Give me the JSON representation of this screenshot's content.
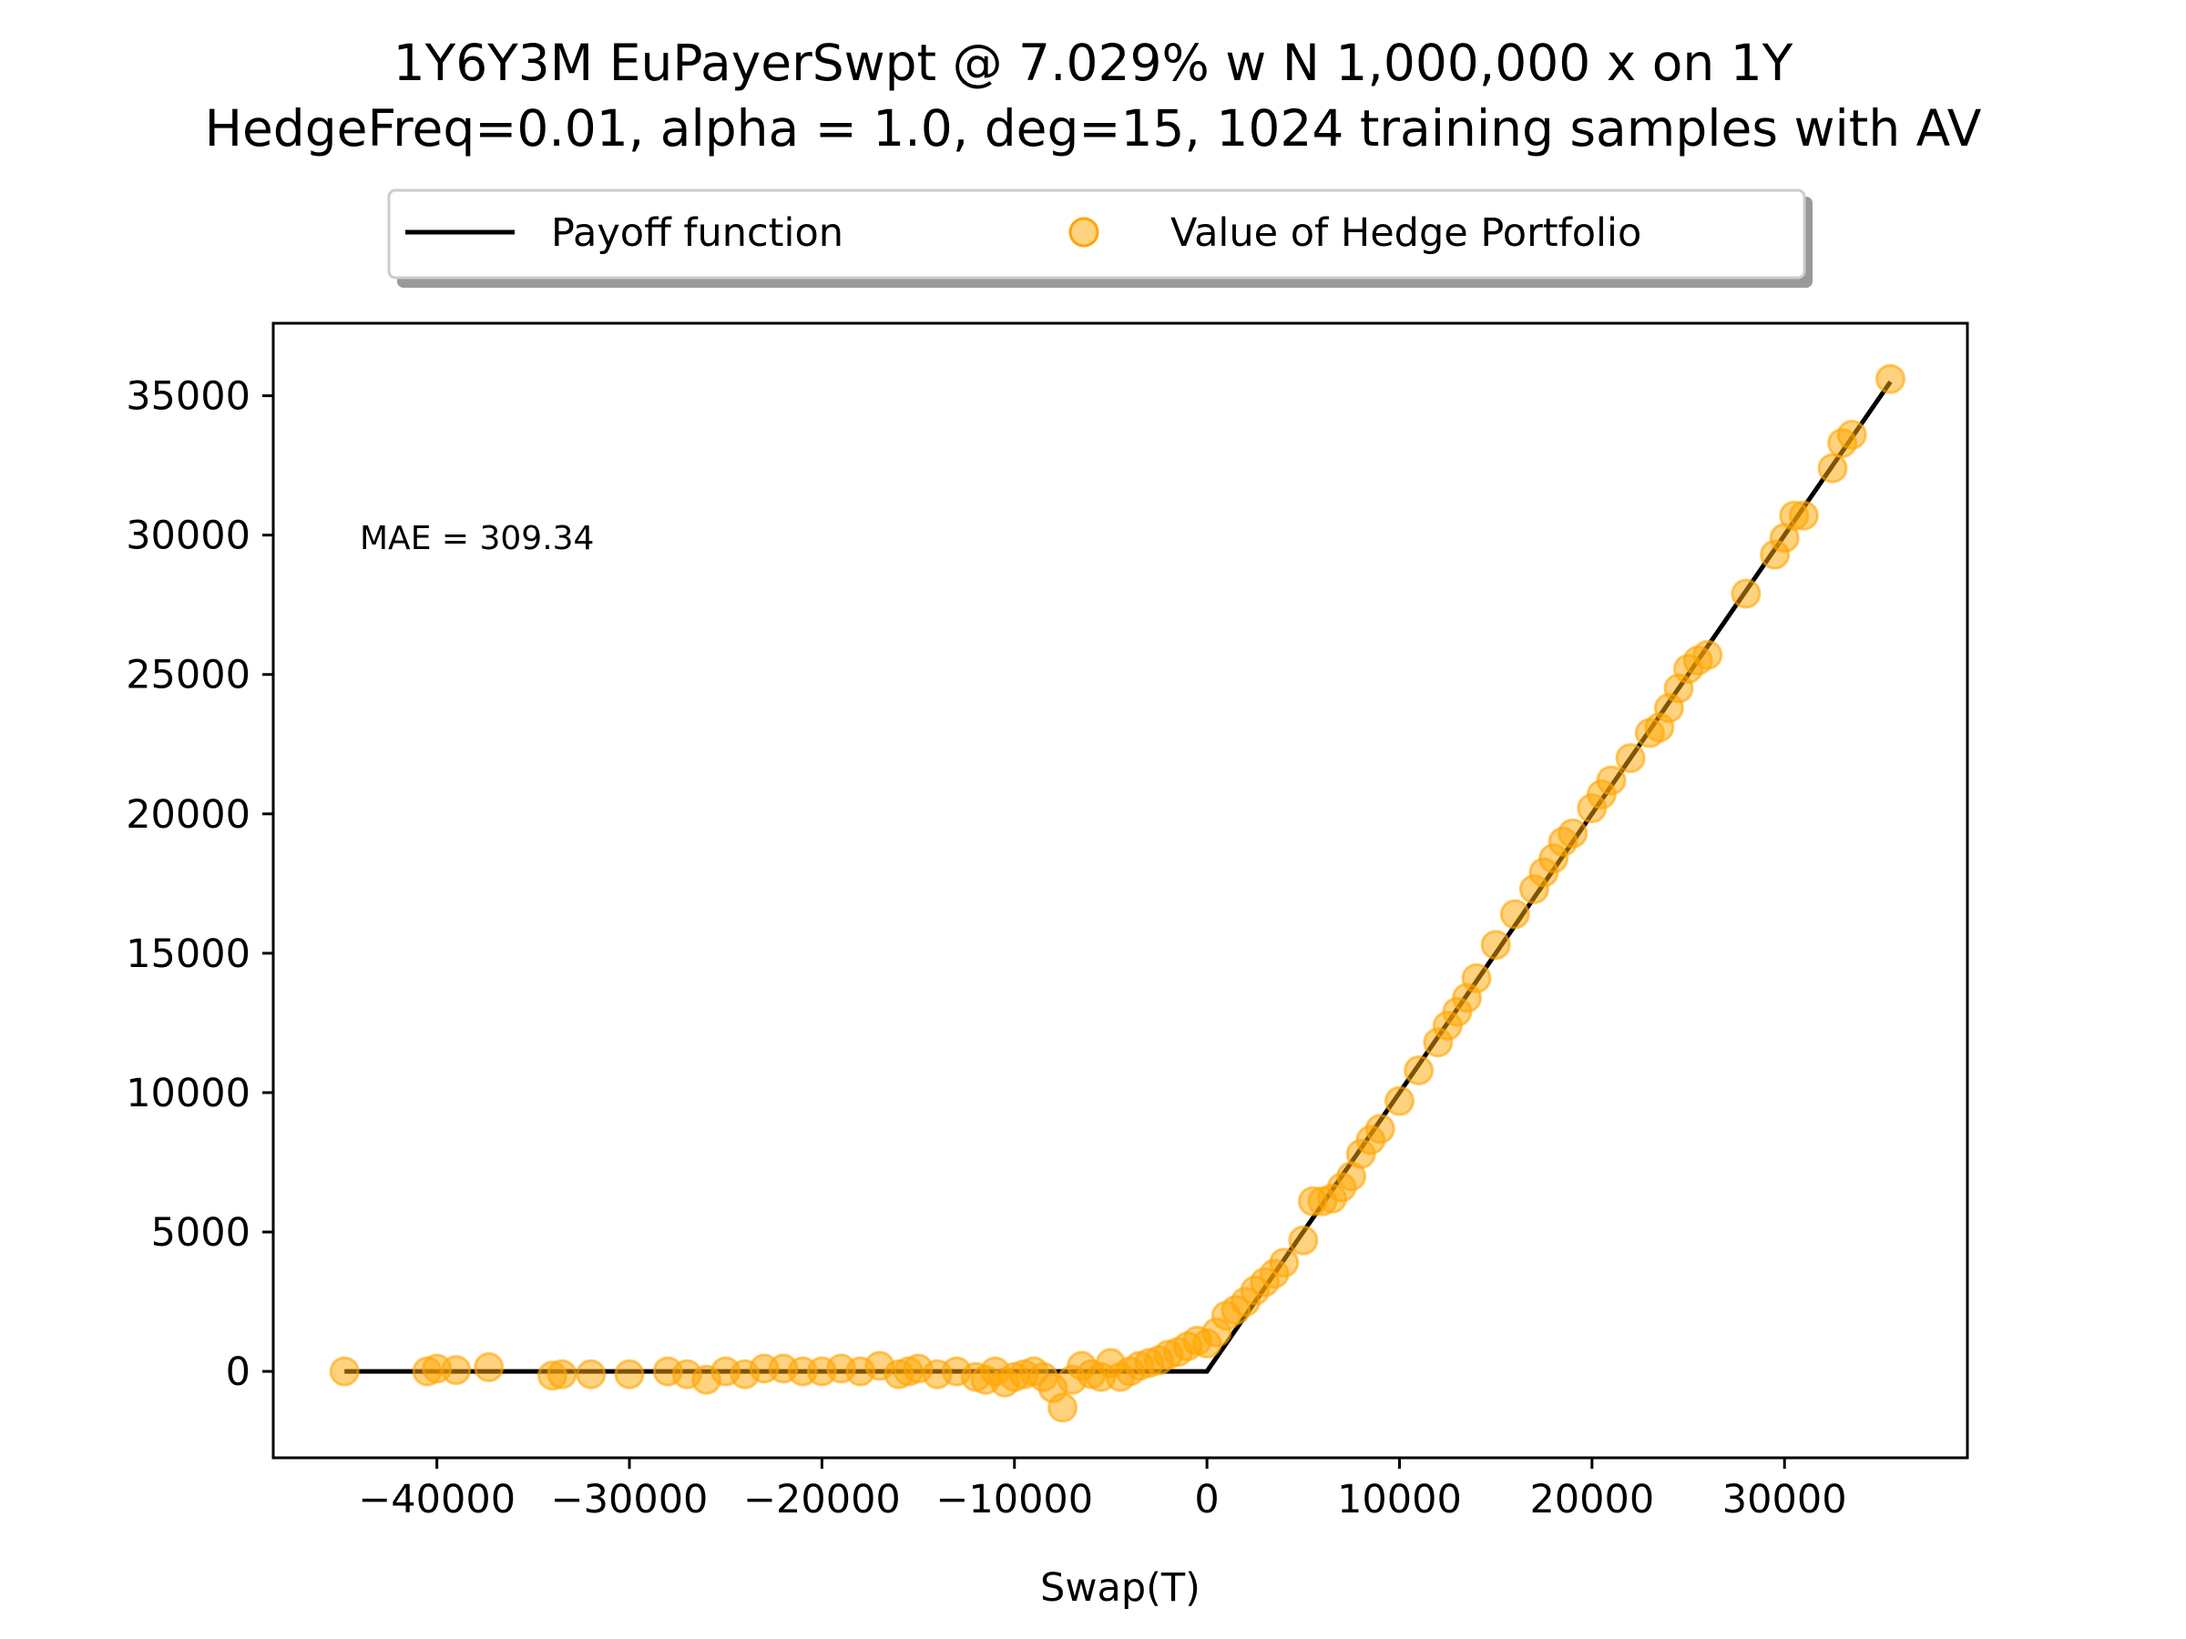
{
  "chart_data": {
    "type": "scatter",
    "title": "1Y6Y3M EuPayerSwpt @ 7.029% w N 1,000,000 x on 1Y",
    "subtitle": "HedgeFreq=0.01, alpha = 1.0, deg=15, 1024 training samples with AV",
    "xlabel": "Swap(T)",
    "ylabel": "",
    "xlim": [
      -48500,
      39500
    ],
    "ylim": [
      -3100,
      37600
    ],
    "xticks": [
      -40000,
      -30000,
      -20000,
      -10000,
      0,
      10000,
      20000,
      30000
    ],
    "yticks": [
      0,
      5000,
      10000,
      15000,
      20000,
      25000,
      30000,
      35000
    ],
    "xtick_labels": [
      "−40000",
      "−30000",
      "−20000",
      "−10000",
      "0",
      "10000",
      "20000",
      "30000"
    ],
    "ytick_labels": [
      "0",
      "5000",
      "10000",
      "15000",
      "20000",
      "25000",
      "30000",
      "35000"
    ],
    "annotation": "MAE = 309.34",
    "legend_position": "top-center, outside axes",
    "grid": false,
    "series": [
      {
        "name": "Payoff function",
        "kind": "line",
        "color": "#000000",
        "x": [
          -44800,
          -38000,
          -30000,
          -20000,
          -10000,
          -5000,
          0,
          5000,
          10000,
          15000,
          20000,
          25000,
          30000,
          35500
        ],
        "y": [
          0,
          0,
          0,
          0,
          0,
          0,
          0,
          5000,
          10000,
          15000,
          20000,
          25000,
          30000,
          35500
        ]
      },
      {
        "name": "Value of Hedge Portfolio",
        "kind": "scatter",
        "color": "#ffa500",
        "x": [
          -44800,
          -40500,
          -40000,
          -39000,
          -37300,
          -34000,
          -33500,
          -32000,
          -30000,
          -28000,
          -27000,
          -26000,
          -25000,
          -24000,
          -23000,
          -22000,
          -21000,
          -20000,
          -19000,
          -18000,
          -17000,
          -16000,
          -15500,
          -15000,
          -14000,
          -13000,
          -12000,
          -11500,
          -11000,
          -10500,
          -10000,
          -9500,
          -9000,
          -8500,
          -8000,
          -7500,
          -7000,
          -6500,
          -6000,
          -5500,
          -5000,
          -4500,
          -4000,
          -3500,
          -3000,
          -2500,
          -2000,
          -1500,
          -1000,
          -500,
          0,
          500,
          1000,
          1500,
          2000,
          2500,
          3000,
          3500,
          4000,
          5000,
          5500,
          6000,
          6500,
          7000,
          7500,
          8000,
          8500,
          9000,
          10000,
          11000,
          12000,
          12500,
          13000,
          13500,
          14000,
          15000,
          16000,
          17000,
          17500,
          18000,
          18500,
          19000,
          20000,
          20500,
          21000,
          22000,
          23000,
          23500,
          24000,
          24500,
          25000,
          25500,
          26000,
          28000,
          29500,
          30000,
          30500,
          31000,
          32500,
          33000,
          33500,
          35500
        ],
        "y": [
          0,
          0,
          100,
          50,
          150,
          -150,
          -100,
          -100,
          -100,
          0,
          -100,
          -300,
          0,
          -100,
          100,
          100,
          0,
          0,
          100,
          0,
          200,
          -100,
          0,
          100,
          -100,
          0,
          -200,
          -300,
          0,
          -400,
          -200,
          -100,
          0,
          -200,
          -600,
          -1300,
          -300,
          200,
          -100,
          -200,
          300,
          -200,
          0,
          200,
          300,
          400,
          600,
          700,
          900,
          1100,
          1000,
          1400,
          2000,
          2200,
          2500,
          2900,
          3200,
          3500,
          3900,
          4700,
          6100,
          6100,
          6200,
          6600,
          7000,
          7800,
          8300,
          8700,
          9700,
          10800,
          11800,
          12400,
          12900,
          13400,
          14100,
          15300,
          16400,
          17300,
          17900,
          18400,
          19000,
          19300,
          20200,
          20700,
          21200,
          22000,
          22900,
          23100,
          23800,
          24500,
          25200,
          25500,
          25700,
          27900,
          29300,
          29900,
          30700,
          30700,
          32400,
          33300,
          33600,
          35600
        ]
      }
    ]
  }
}
